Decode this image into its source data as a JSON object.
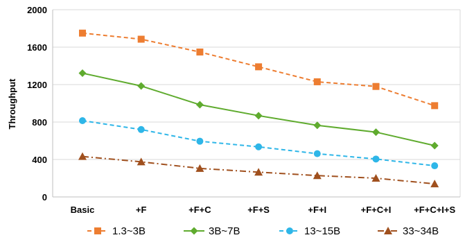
{
  "chart_data": {
    "type": "line",
    "categories": [
      "Basic",
      "+F",
      "+F+C",
      "+F+S",
      "+F+I",
      "+F+C+I",
      "+F+C+I+S"
    ],
    "ylabel": "Throughput",
    "xlabel": "",
    "ylim": [
      0,
      2000
    ],
    "yticks": [
      0,
      400,
      800,
      1200,
      1600,
      2000
    ],
    "grid": "horizontal",
    "legend_position": "bottom",
    "series": [
      {
        "name": "1.3~3B",
        "values": [
          1750,
          1685,
          1548,
          1390,
          1230,
          1180,
          975
        ],
        "color": "#ED7D31",
        "marker": "square",
        "dash": "dashed"
      },
      {
        "name": "3B~7B",
        "values": [
          1322,
          1185,
          985,
          868,
          765,
          692,
          548
        ],
        "color": "#5FAB2E",
        "marker": "diamond",
        "dash": "solid"
      },
      {
        "name": "13~15B",
        "values": [
          815,
          720,
          595,
          535,
          462,
          405,
          333
        ],
        "color": "#2EB6E8",
        "marker": "circle",
        "dash": "dashed"
      },
      {
        "name": "33~34B",
        "values": [
          432,
          375,
          305,
          265,
          228,
          200,
          140
        ],
        "color": "#A0501E",
        "marker": "triangle",
        "dash": "dashdot"
      }
    ]
  }
}
